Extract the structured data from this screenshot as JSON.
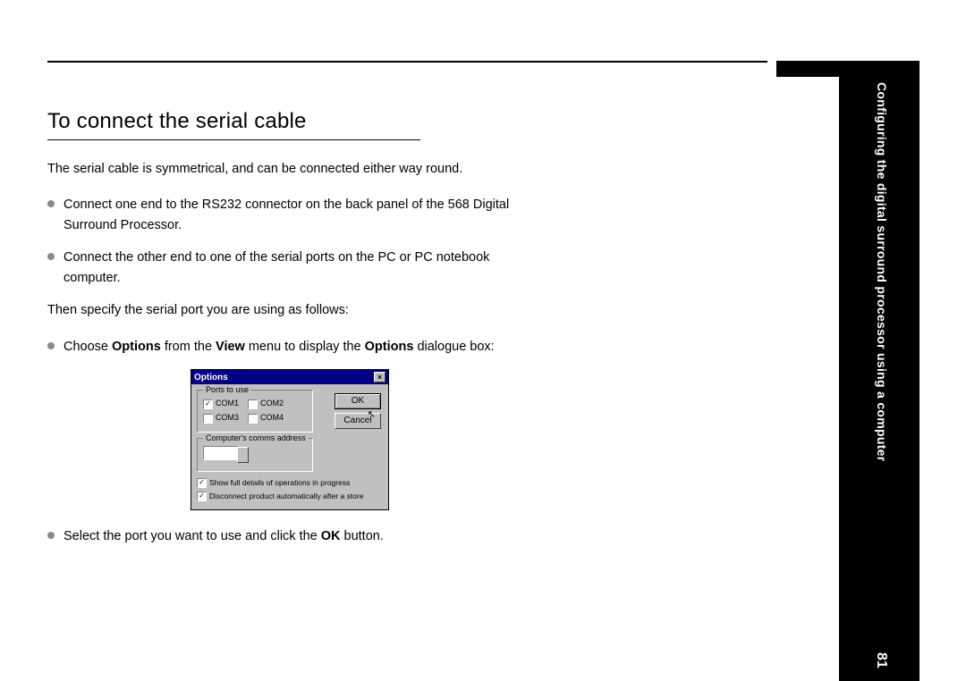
{
  "side_label": "Configuring the digital surround processor using a computer",
  "page_number": "81",
  "heading": "To connect the serial cable",
  "intro": "The serial cable is symmetrical, and can be connected either way round.",
  "bullets1": [
    "Connect one end to the RS232 connector on the back panel of the 568 Digital Surround Processor.",
    "Connect the other end to one of the serial ports on the PC or PC notebook computer."
  ],
  "then_text": "Then specify the serial port you are using as follows:",
  "bullet_options_pre": "Choose ",
  "bullet_options_b1": "Options",
  "bullet_options_mid1": " from the ",
  "bullet_options_b2": "View",
  "bullet_options_mid2": " menu to display the ",
  "bullet_options_b3": "Options",
  "bullet_options_post": " dialogue box:",
  "dialog": {
    "title": "Options",
    "ports_label": "Ports to use",
    "com1": "COM1",
    "com2": "COM2",
    "com3": "COM3",
    "com4": "COM4",
    "addr_label": "Computer's comms address",
    "ok": "OK",
    "cancel": "Cancel",
    "chk_full": "Show full details of operations in progress",
    "chk_disc": "Disconnect product automatically after a store"
  },
  "last_bullet_pre": "Select the port you want to use and click the ",
  "last_bullet_b": "OK",
  "last_bullet_post": " button.",
  "colors": {
    "titlebar": "#000080",
    "dialog_bg": "#c0c0c0",
    "bullet": "#8a8a8a",
    "text": "#000000"
  }
}
